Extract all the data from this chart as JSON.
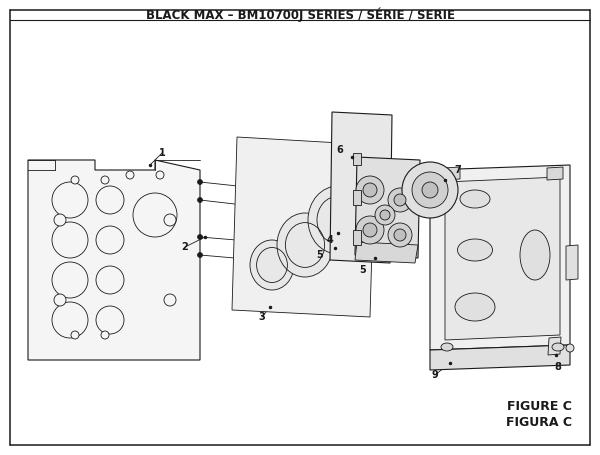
{
  "title": "BLACK MAX – BM10700J SERIES / SÉRIE / SERIE",
  "title_fontsize": 8.5,
  "title_fontweight": "bold",
  "figure_c_label": "FIGURE C",
  "figura_c_label": "FIGURA C",
  "bg_color": "#ffffff",
  "line_color": "#1a1a1a",
  "figsize": [
    6.0,
    4.55
  ],
  "dpi": 100
}
